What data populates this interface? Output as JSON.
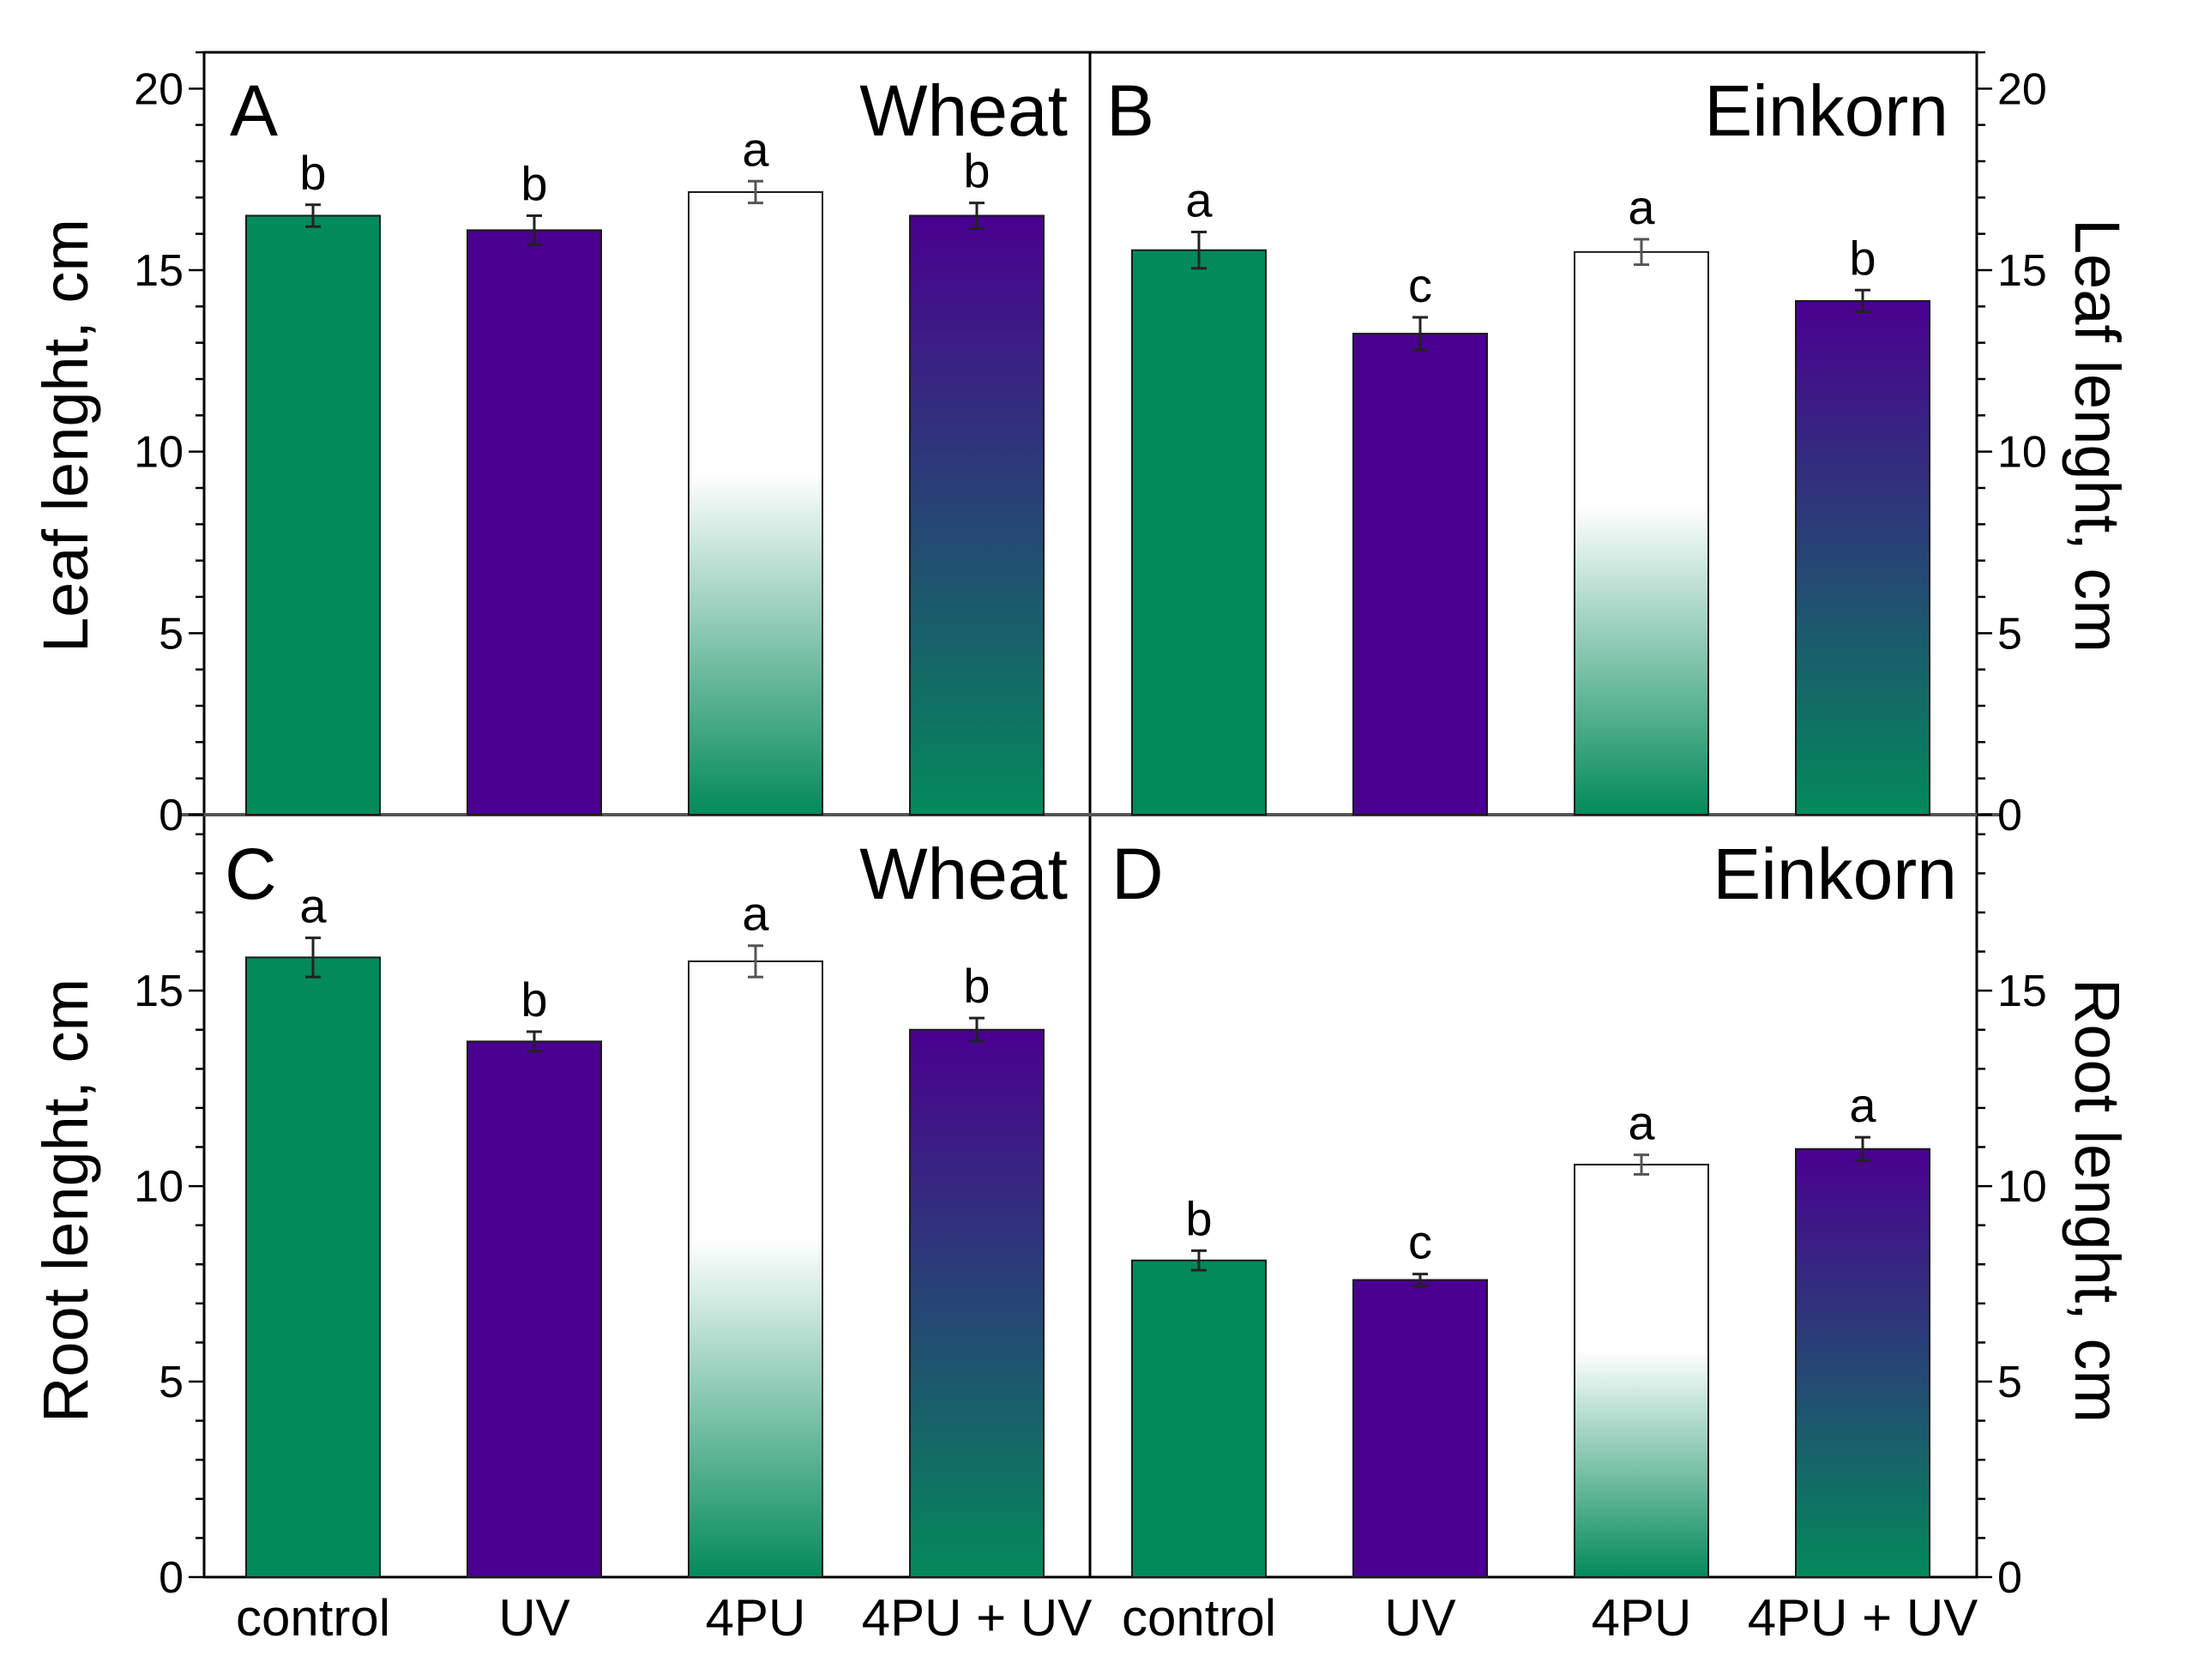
{
  "figure": {
    "y_axis_label_top": "Leaf lenght, cm",
    "y_axis_label_bottom": "Root lenght, cm"
  },
  "chart_data": [
    {
      "type": "bar",
      "panel": "A",
      "title": "Wheat",
      "ylabel": "Leaf lenght, cm",
      "ylim": [
        0,
        21
      ],
      "yticks": [
        0,
        5,
        10,
        15,
        20
      ],
      "categories": [
        "control",
        "UV",
        "4PU",
        "4PU + UV"
      ],
      "values": [
        16.5,
        16.1,
        17.15,
        16.5
      ],
      "errors": [
        0.3,
        0.4,
        0.3,
        0.35
      ],
      "significance": [
        "b",
        "b",
        "a",
        "b"
      ]
    },
    {
      "type": "bar",
      "panel": "B",
      "title": "Einkorn",
      "ylabel": "Leaf lenght, cm",
      "ylim": [
        0,
        21
      ],
      "yticks": [
        0,
        5,
        10,
        15,
        20
      ],
      "categories": [
        "control",
        "UV",
        "4PU",
        "4PU + UV"
      ],
      "values": [
        15.55,
        13.25,
        15.5,
        14.15
      ],
      "errors": [
        0.5,
        0.45,
        0.35,
        0.3
      ],
      "significance": [
        "a",
        "c",
        "a",
        "b"
      ]
    },
    {
      "type": "bar",
      "panel": "C",
      "title": "Wheat",
      "ylabel": "Root lenght, cm",
      "ylim": [
        0,
        19.5
      ],
      "yticks": [
        0,
        5,
        10,
        15
      ],
      "categories": [
        "control",
        "UV",
        "4PU",
        "4PU + UV"
      ],
      "values": [
        15.85,
        13.7,
        15.75,
        14.0
      ],
      "errors": [
        0.5,
        0.25,
        0.4,
        0.3
      ],
      "significance": [
        "a",
        "b",
        "a",
        "b"
      ]
    },
    {
      "type": "bar",
      "panel": "D",
      "title": "Einkorn",
      "ylabel": "Root lenght, cm",
      "ylim": [
        0,
        19.5
      ],
      "yticks": [
        0,
        5,
        10,
        15
      ],
      "categories": [
        "control",
        "UV",
        "4PU",
        "4PU + UV"
      ],
      "values": [
        8.1,
        7.6,
        10.55,
        10.95
      ],
      "errors": [
        0.25,
        0.15,
        0.25,
        0.3
      ],
      "significance": [
        "b",
        "c",
        "a",
        "a"
      ]
    }
  ],
  "colors": {
    "green": "#038a5a",
    "purple": "#4a0090",
    "white": "#ffffff",
    "axis": "#000000",
    "divider": "#555555",
    "errorbar": "#222222"
  }
}
